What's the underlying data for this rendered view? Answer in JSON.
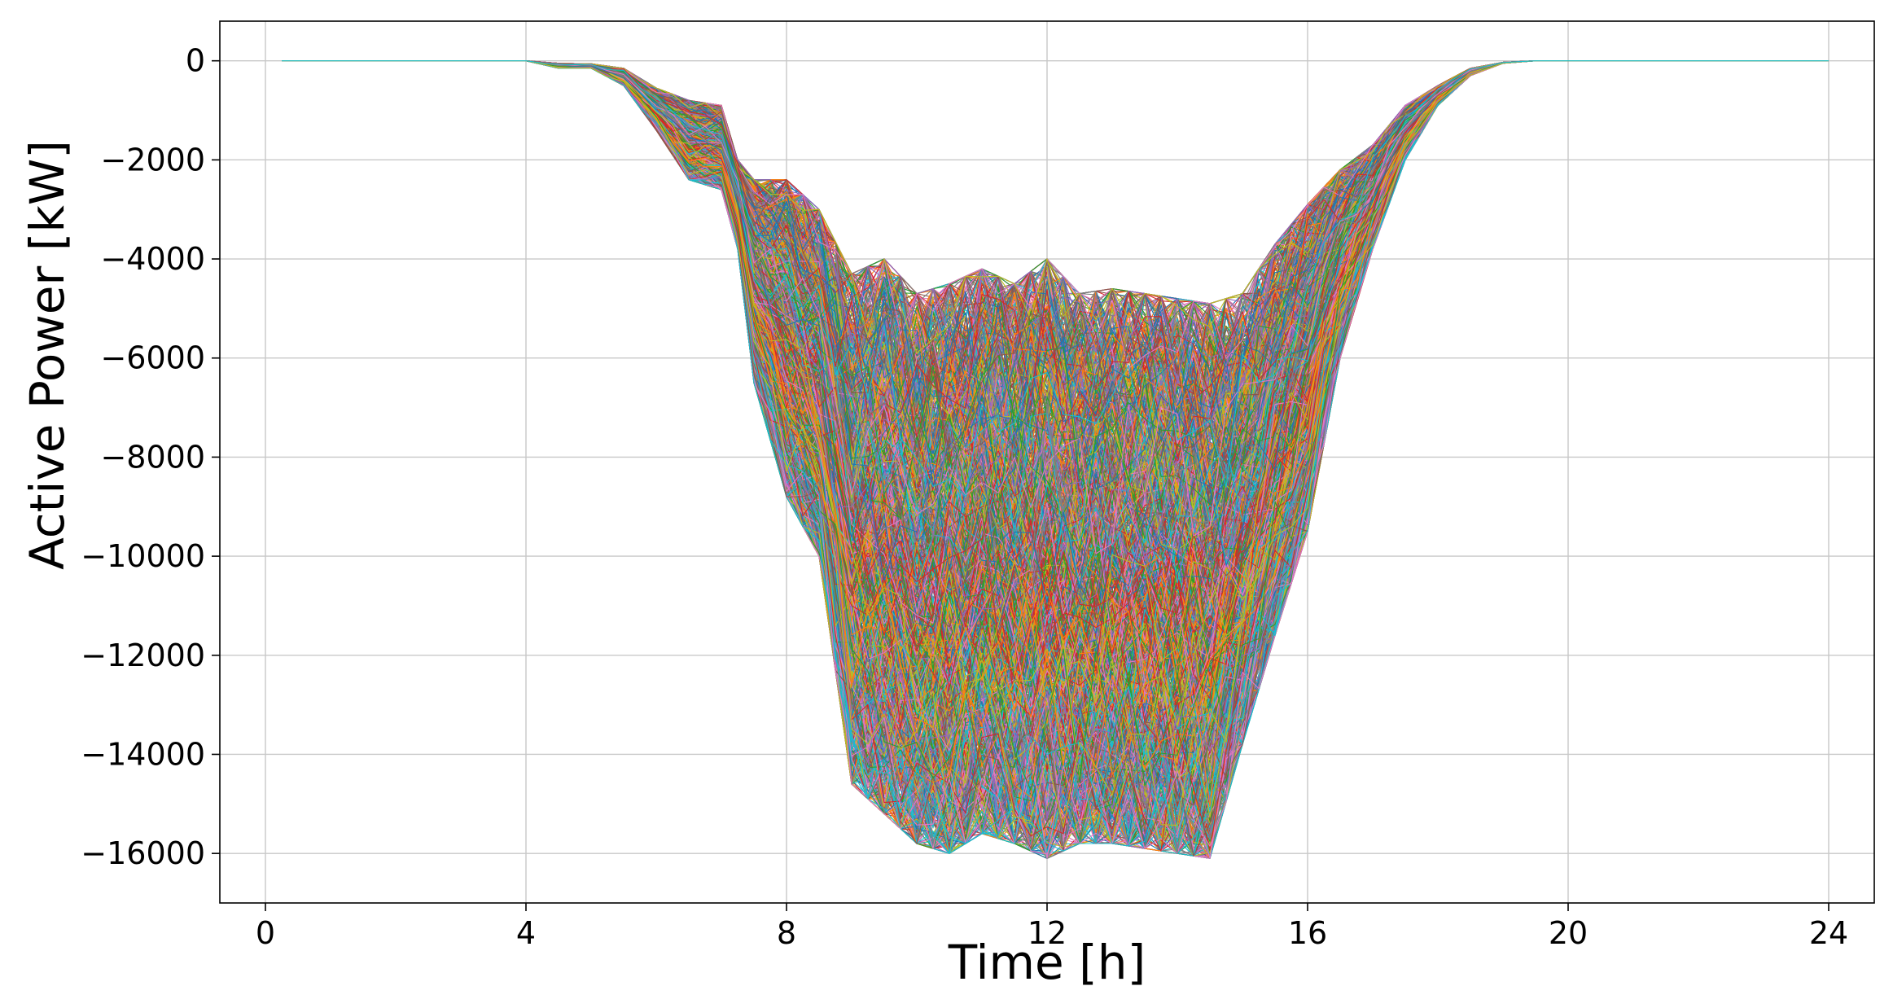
{
  "chart_data": {
    "type": "line",
    "title": "",
    "xlabel": "Time [h]",
    "ylabel": "Active Power [kW]",
    "xlim": [
      -0.7,
      24.7
    ],
    "ylim": [
      -17000,
      800
    ],
    "x_ticks": [
      0,
      4,
      8,
      12,
      16,
      20,
      24
    ],
    "x_tick_labels": [
      "0",
      "4",
      "8",
      "12",
      "16",
      "20",
      "24"
    ],
    "y_ticks": [
      0,
      -2000,
      -4000,
      -6000,
      -8000,
      -10000,
      -12000,
      -14000,
      -16000
    ],
    "y_tick_labels": [
      "0",
      "−2000",
      "−4000",
      "−6000",
      "−8000",
      "−10000",
      "−12000",
      "−14000",
      "−16000"
    ],
    "grid": true,
    "legend": "none",
    "x_step_h": 0.25,
    "series_count": 1000,
    "series_colors": [
      "#1f77b4",
      "#ff7f0e",
      "#2ca02c",
      "#d62728",
      "#9467bd",
      "#8c564b",
      "#e377c2",
      "#7f7f7f",
      "#bcbd22",
      "#17becf"
    ],
    "envelope": {
      "x": [
        0.25,
        4.0,
        4.5,
        5.0,
        5.5,
        6.0,
        6.5,
        7.0,
        7.25,
        7.5,
        8.0,
        8.5,
        9.0,
        9.5,
        10.0,
        10.5,
        11.0,
        11.5,
        12.0,
        12.5,
        13.0,
        13.5,
        14.0,
        14.5,
        15.0,
        15.5,
        16.0,
        16.5,
        17.0,
        17.5,
        18.0,
        18.5,
        19.0,
        19.5,
        19.75,
        24.0
      ],
      "upper": [
        0,
        0,
        -50,
        -60,
        -150,
        -550,
        -800,
        -900,
        -2000,
        -2400,
        -2400,
        -3000,
        -4300,
        -4000,
        -4700,
        -4500,
        -4200,
        -4500,
        -4000,
        -4700,
        -4600,
        -4700,
        -4800,
        -4900,
        -4700,
        -3700,
        -2900,
        -2200,
        -1700,
        -900,
        -500,
        -150,
        -30,
        0,
        0,
        0
      ],
      "lower": [
        0,
        0,
        -150,
        -150,
        -500,
        -1400,
        -2400,
        -2600,
        -3800,
        -6500,
        -8800,
        -10000,
        -14600,
        -15200,
        -15800,
        -16000,
        -15600,
        -15800,
        -16100,
        -15800,
        -15800,
        -15900,
        -16000,
        -16100,
        -13800,
        -11600,
        -9500,
        -6000,
        -3800,
        -2000,
        -900,
        -300,
        -50,
        0,
        0,
        0
      ]
    }
  }
}
